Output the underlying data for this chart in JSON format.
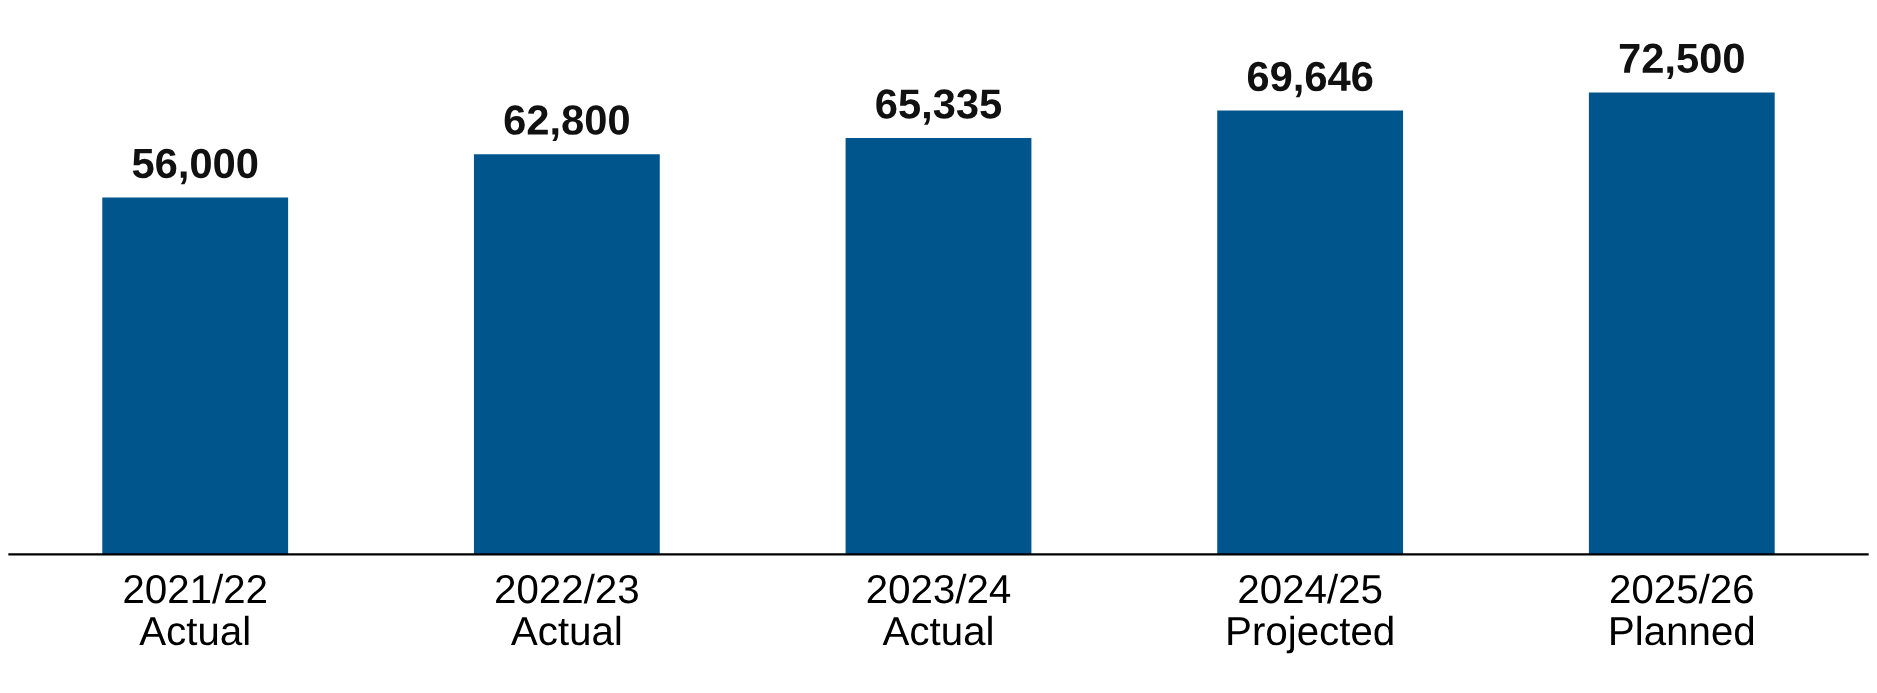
{
  "chart_data": {
    "type": "bar",
    "categories": [
      "2021/22\nActual",
      "2022/23\nActual",
      "2023/24\nActual",
      "2024/25\nProjected",
      "2025/26\nPlanned"
    ],
    "values": [
      56000,
      62800,
      65335,
      69646,
      72500
    ],
    "value_labels": [
      "56,000",
      "62,800",
      "65,335",
      "69,646",
      "72,500"
    ],
    "color": "#00558c",
    "grid": false,
    "legend": false
  }
}
